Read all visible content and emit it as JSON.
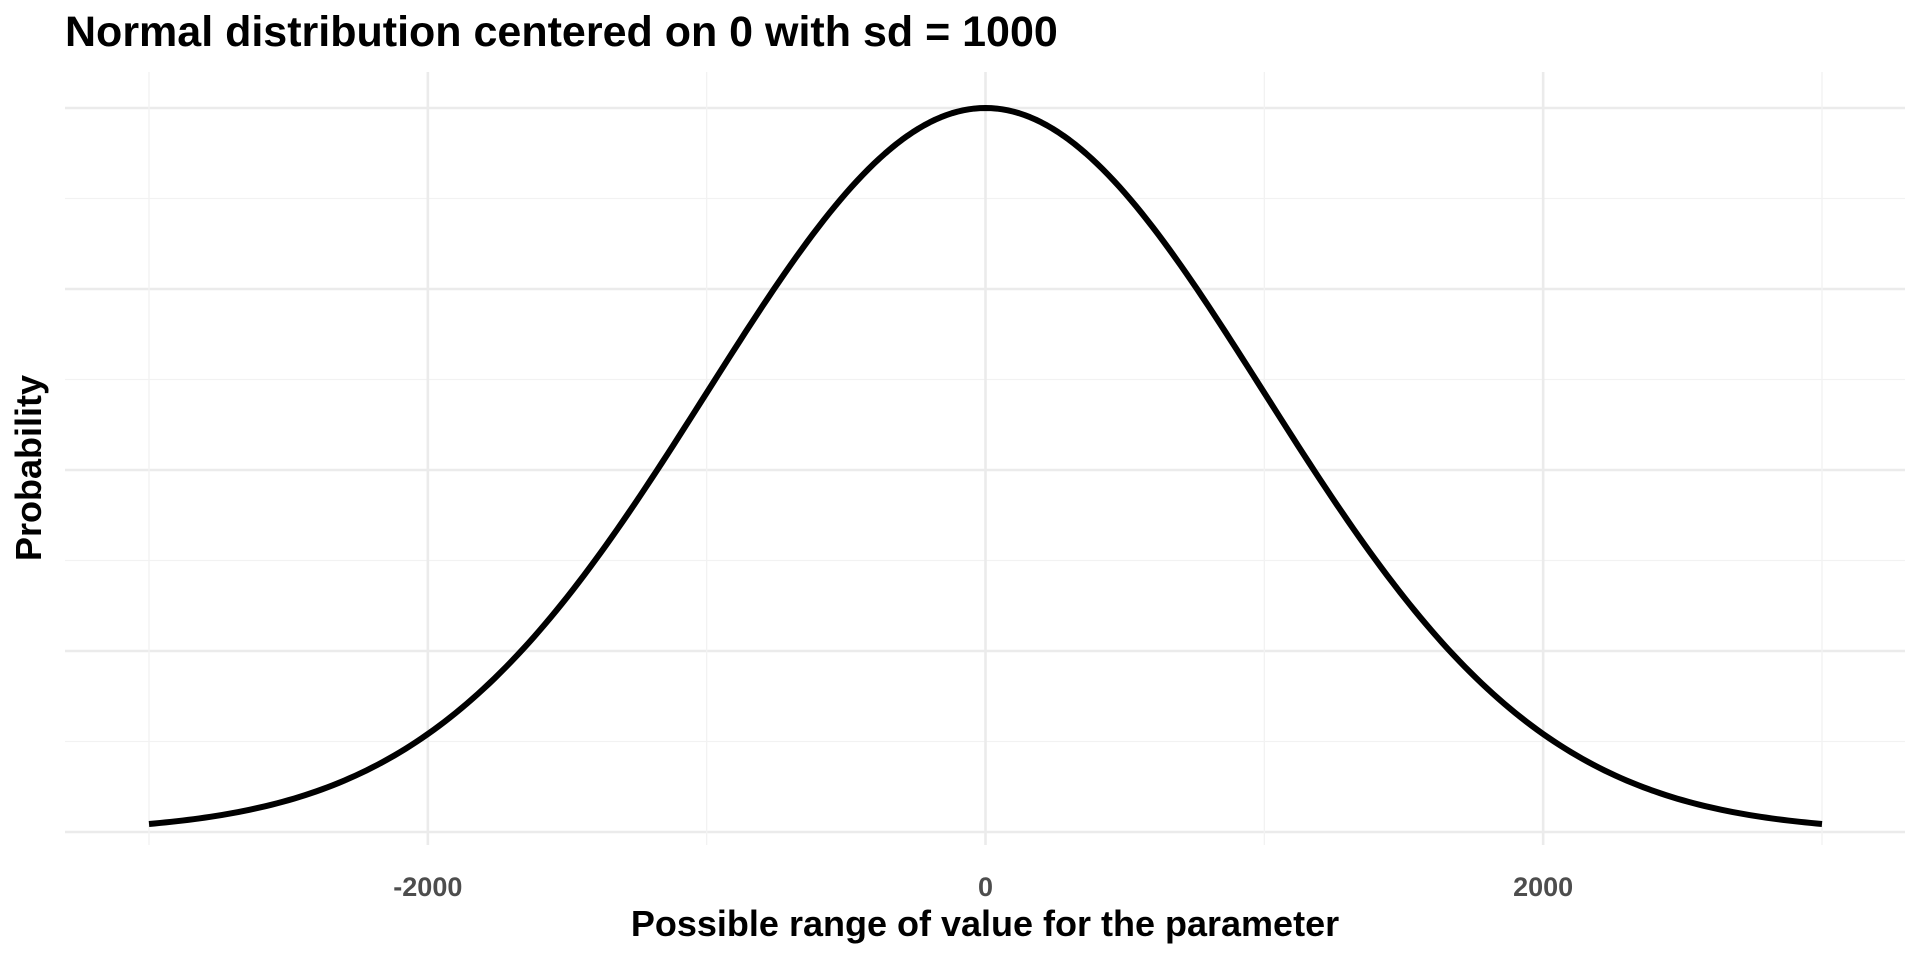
{
  "chart_data": {
    "type": "line",
    "title": "Normal distribution centered on 0 with sd = 1000",
    "xlabel": "Possible range of value for the parameter",
    "ylabel": "Probability",
    "distribution": {
      "family": "normal",
      "mean": 0,
      "sd": 1000
    },
    "xlim": [
      -3000,
      3000
    ],
    "x_ticks": [
      -2000,
      0,
      2000
    ],
    "x_tick_labels": [
      "-2000",
      "0",
      "2000"
    ],
    "x_minor_ticks": [
      -3000,
      -1000,
      1000,
      3000
    ],
    "y_tick_labels_shown": false,
    "grid": true,
    "legend": "none",
    "series": [
      {
        "x": [
          -3000,
          -2750,
          -2500,
          -2250,
          -2000,
          -1750,
          -1500,
          -1250,
          -1000,
          -750,
          -500,
          -250,
          0,
          250,
          500,
          750,
          1000,
          1250,
          1500,
          1750,
          2000,
          2250,
          2500,
          2750,
          3000
        ],
        "y": [
          4.43e-06,
          9.09e-06,
          1.75e-05,
          3.17e-05,
          5.4e-05,
          8.63e-05,
          0.00013,
          0.000183,
          0.000242,
          0.000301,
          0.000352,
          0.000387,
          0.000399,
          0.000387,
          0.000352,
          0.000301,
          0.000242,
          0.000183,
          0.00013,
          8.63e-05,
          5.4e-05,
          3.17e-05,
          1.75e-05,
          9.09e-06,
          4.43e-06
        ]
      }
    ],
    "colors": {
      "line": "#000000",
      "grid": "#ebebeb",
      "tick_text": "#4d4d4d"
    }
  }
}
